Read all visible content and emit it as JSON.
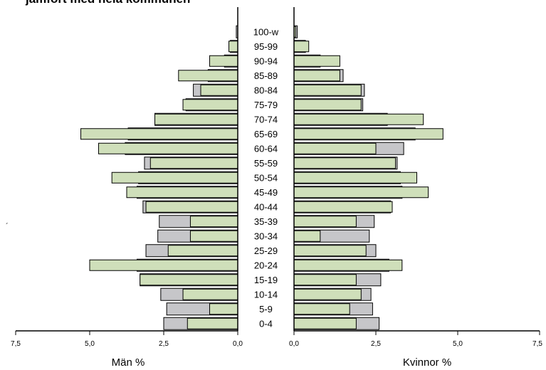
{
  "chart_data": {
    "type": "bar",
    "orientation": "horizontal-population-pyramid",
    "title": "jämfört med hela kommunen",
    "categories": [
      "0-4",
      "5-9",
      "10-14",
      "15-19",
      "20-24",
      "25-29",
      "30-34",
      "35-39",
      "40-44",
      "45-49",
      "50-54",
      "55-59",
      "60-64",
      "65-69",
      "70-74",
      "75-79",
      "80-84",
      "85-89",
      "90-94",
      "95-99",
      "100-w"
    ],
    "xlim": [
      0,
      7.5
    ],
    "ticks": [
      "0,0",
      "2,5",
      "5,0",
      "7,5"
    ],
    "left": {
      "label": "Män %",
      "series": [
        {
          "values": [
            2.5,
            2.4,
            2.6,
            3.3,
            3.4,
            3.1,
            2.7,
            2.65,
            3.2,
            3.4,
            3.35,
            3.15,
            3.8,
            3.7,
            2.8,
            1.75,
            1.5,
            1.0,
            0.45,
            0.25,
            0.05
          ],
          "color": "#c6c6c9"
        },
        {
          "values": [
            1.7,
            0.95,
            1.85,
            3.3,
            5.0,
            2.35,
            1.6,
            1.6,
            3.1,
            3.75,
            4.25,
            2.95,
            4.7,
            5.3,
            2.8,
            1.85,
            1.25,
            2.0,
            0.95,
            0.3,
            0.0
          ],
          "color": "#cfdfba"
        }
      ]
    },
    "right": {
      "label": "Kvinnor %",
      "series": [
        {
          "values": [
            2.6,
            2.4,
            2.35,
            2.65,
            2.9,
            2.5,
            2.3,
            2.45,
            2.95,
            3.3,
            3.25,
            3.15,
            3.35,
            3.7,
            2.85,
            2.1,
            2.15,
            1.5,
            0.8,
            0.35,
            0.1
          ],
          "color": "#c6c6c9"
        },
        {
          "values": [
            1.9,
            1.7,
            2.05,
            1.9,
            3.3,
            2.2,
            0.8,
            1.9,
            3.0,
            4.1,
            3.75,
            3.1,
            2.5,
            4.55,
            3.95,
            2.05,
            2.05,
            1.4,
            1.4,
            0.45,
            0.05
          ],
          "color": "#cfdfba"
        }
      ]
    },
    "grid": false
  }
}
